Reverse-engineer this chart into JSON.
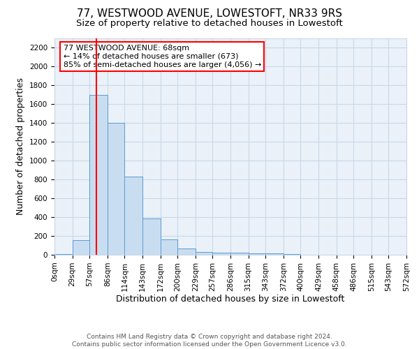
{
  "title": "77, WESTWOOD AVENUE, LOWESTOFT, NR33 9RS",
  "subtitle": "Size of property relative to detached houses in Lowestoft",
  "xlabel": "Distribution of detached houses by size in Lowestoft",
  "ylabel": "Number of detached properties",
  "bin_edges": [
    0,
    29,
    57,
    86,
    114,
    143,
    172,
    200,
    229,
    257,
    286,
    315,
    343,
    372,
    400,
    429,
    458,
    486,
    515,
    543,
    572
  ],
  "bin_counts": [
    10,
    155,
    1700,
    1400,
    830,
    385,
    165,
    65,
    30,
    20,
    20,
    15,
    15,
    5,
    0,
    0,
    0,
    0,
    0,
    0
  ],
  "bar_color": "#c9ddf0",
  "bar_edge_color": "#5b9bd5",
  "red_line_x": 68,
  "ylim": [
    0,
    2300
  ],
  "yticks": [
    0,
    200,
    400,
    600,
    800,
    1000,
    1200,
    1400,
    1600,
    1800,
    2000,
    2200
  ],
  "annotation_box_line1": "77 WESTWOOD AVENUE: 68sqm",
  "annotation_box_line2": "← 14% of detached houses are smaller (673)",
  "annotation_box_line3": "85% of semi-detached houses are larger (4,056) →",
  "footer_line1": "Contains HM Land Registry data © Crown copyright and database right 2024.",
  "footer_line2": "Contains public sector information licensed under the Open Government Licence v3.0.",
  "background_color": "#ffffff",
  "plot_bg_color": "#eaf1f8",
  "grid_color": "#c8d8e8",
  "title_fontsize": 11,
  "subtitle_fontsize": 9.5,
  "axis_label_fontsize": 9,
  "tick_label_fontsize": 7.5,
  "footer_fontsize": 6.5,
  "annotation_fontsize": 8
}
